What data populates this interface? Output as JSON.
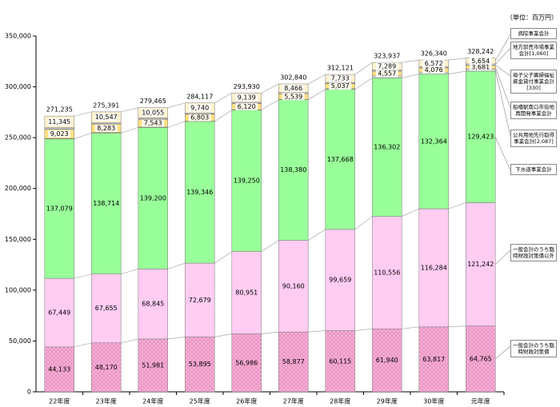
{
  "chart_data": {
    "type": "stacked_bar",
    "unit_label": "（単位：百万円）",
    "categories": [
      "22年度",
      "23年度",
      "24年度",
      "25年度",
      "26年度",
      "27年度",
      "28年度",
      "29年度",
      "30年度",
      "元年度"
    ],
    "ylim": [
      0,
      350000
    ],
    "yticks": [
      {
        "value": 0,
        "label": "0"
      },
      {
        "value": 50000,
        "label": "50,000"
      },
      {
        "value": 100000,
        "label": "100,000"
      },
      {
        "value": 150000,
        "label": "150,000"
      },
      {
        "value": 200000,
        "label": "200,000"
      },
      {
        "value": 250000,
        "label": "250,000"
      },
      {
        "value": 300000,
        "label": "300,000"
      },
      {
        "value": 350000,
        "label": "350,000"
      }
    ],
    "series": [
      {
        "name": "一般会計のうち臨時財政対策債",
        "color": "#f7b3d9",
        "pattern": "crosshatch",
        "values": [
          44133,
          48170,
          51981,
          53895,
          56986,
          58877,
          60115,
          61940,
          63817,
          64765
        ],
        "value_labels": [
          "44,133",
          "48,170",
          "51,981",
          "53,895",
          "56,986",
          "58,877",
          "60,115",
          "61,940",
          "63,817",
          "64,765"
        ]
      },
      {
        "name": "一般会計のうち臨時財政対策債以外",
        "color": "#ffccf2",
        "values": [
          67449,
          67655,
          68845,
          72679,
          80951,
          90160,
          99659,
          110556,
          116284,
          121242
        ],
        "value_labels": [
          "67,449",
          "67,655",
          "68,845",
          "72,679",
          "80,951",
          "90,160",
          "99,659",
          "110,556",
          "116,284",
          "121,242"
        ]
      },
      {
        "name": "下水道事業会計",
        "color": "#99ff99",
        "values": [
          137079,
          138714,
          139200,
          139346,
          139250,
          138380,
          137668,
          136302,
          132364,
          129423
        ],
        "value_labels": [
          "137,079",
          "138,714",
          "139,200",
          "139,346",
          "139,250",
          "138,380",
          "137,668",
          "136,302",
          "132,364",
          "129,423"
        ]
      },
      {
        "name": "公共用地先行取得事業会計[2,087]",
        "color": "#d9d9d9",
        "values": [
          600,
          500,
          400,
          300,
          250,
          200,
          700,
          2000,
          2000,
          2087
        ]
      },
      {
        "name": "船橋駅南口市街地再開発事業会計",
        "color": "#ffdf80",
        "values": [
          9023,
          8283,
          7543,
          6803,
          6120,
          5539,
          5037,
          4557,
          4076,
          3681
        ],
        "value_labels": [
          "9,023",
          "8,283",
          "7,543",
          "6,803",
          "6,120",
          "5,539",
          "5,037",
          "4,557",
          "4,076",
          "3,681"
        ]
      },
      {
        "name": "母子父子寡婦福祉資金貸付事業会計[330]",
        "color": "#ffffff",
        "values": [
          500,
          480,
          460,
          440,
          420,
          400,
          380,
          360,
          340,
          330
        ]
      },
      {
        "name": "地方卸売市場事業会計[1,060]",
        "color": "#e6f0ff",
        "values": [
          1106,
          1042,
          981,
          914,
          814,
          818,
          829,
          933,
          887,
          1060
        ]
      },
      {
        "name": "病院事業会計",
        "color": "#fff2cc",
        "values": [
          11345,
          10547,
          10055,
          9740,
          9139,
          8466,
          7733,
          7289,
          6572,
          5654
        ],
        "value_labels": [
          "11,345",
          "10,547",
          "10,055",
          "9,740",
          "9,139",
          "8,466",
          "7,733",
          "7,289",
          "6,572",
          "5,654"
        ]
      }
    ],
    "totals": [
      271235,
      275391,
      279465,
      284117,
      293930,
      302840,
      312121,
      323937,
      326340,
      328242
    ],
    "total_labels": [
      "271,235",
      "275,391",
      "279,465",
      "284,117",
      "293,930",
      "302,840",
      "312,121",
      "323,937",
      "326,340",
      "328,242"
    ]
  }
}
